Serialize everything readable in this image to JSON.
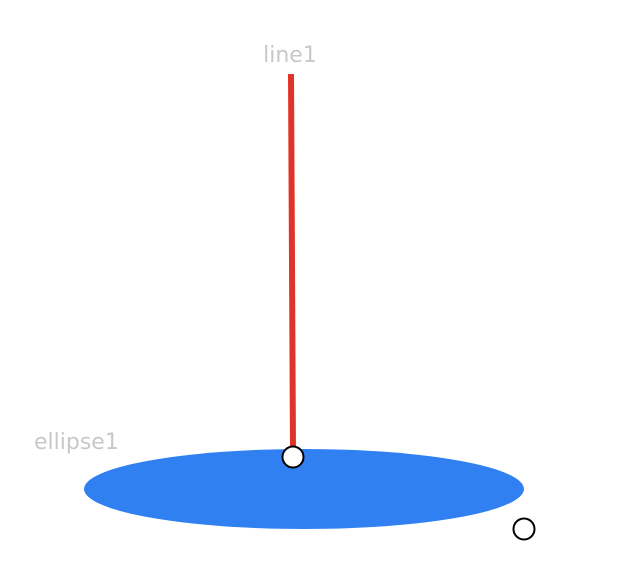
{
  "canvas": {
    "background": "#ffffff",
    "objects": [
      {
        "id": "line1",
        "kind": "line",
        "label": "line1",
        "stroke": "#e2332b",
        "label_color": "#c8c8c8"
      },
      {
        "id": "ellipse1",
        "kind": "ellipse",
        "label": "ellipse1",
        "fill": "#3080f2",
        "label_color": "#c8c8c8"
      }
    ],
    "handles": [
      {
        "id": "line-endpoint-handle"
      },
      {
        "id": "ellipse-resize-handle"
      }
    ]
  }
}
